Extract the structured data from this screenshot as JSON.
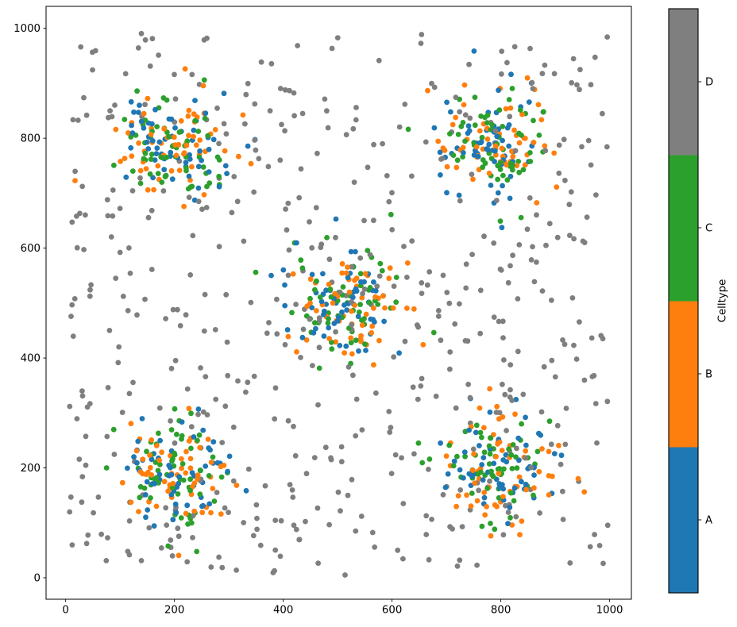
{
  "chart_data": {
    "type": "scatter",
    "title": "",
    "xlabel": "",
    "ylabel": "",
    "xticks": [
      0,
      200,
      400,
      600,
      800,
      1000
    ],
    "yticks": [
      0,
      200,
      400,
      600,
      800,
      1000
    ],
    "xlim": [
      -36,
      1040
    ],
    "ylim": [
      -39,
      1040
    ],
    "grid": false,
    "background_color": "#ffffff",
    "axis_color": "#000000",
    "marker_diameter_px": 6.8,
    "seed": 7,
    "series": [
      {
        "name": "A",
        "color": "#1f77b4",
        "distribution": "gaussian_clusters",
        "cluster_centers": [
          [
            197,
            789
          ],
          [
            794,
            795
          ],
          [
            508,
            492
          ],
          [
            203,
            199
          ],
          [
            799,
            202
          ]
        ],
        "std": 50,
        "points_per_cluster": 60
      },
      {
        "name": "B",
        "color": "#ff7f0e",
        "distribution": "gaussian_clusters",
        "cluster_centers": [
          [
            197,
            789
          ],
          [
            794,
            795
          ],
          [
            508,
            492
          ],
          [
            203,
            199
          ],
          [
            799,
            202
          ]
        ],
        "std": 50,
        "points_per_cluster": 60
      },
      {
        "name": "C",
        "color": "#2ca02c",
        "distribution": "gaussian_clusters",
        "cluster_centers": [
          [
            197,
            789
          ],
          [
            794,
            795
          ],
          [
            508,
            492
          ],
          [
            203,
            199
          ],
          [
            799,
            202
          ]
        ],
        "std": 50,
        "points_per_cluster": 60
      },
      {
        "name": "D",
        "color": "#7f7f7f",
        "distribution": "uniform",
        "count": 530,
        "x_range": [
          3,
          997
        ],
        "y_range": [
          3,
          997
        ]
      }
    ],
    "colorbar": {
      "label": "Celltype",
      "categories": [
        "A",
        "B",
        "C",
        "D"
      ],
      "colors": [
        "#1f77b4",
        "#ff7f0e",
        "#2ca02c",
        "#7f7f7f"
      ]
    }
  }
}
